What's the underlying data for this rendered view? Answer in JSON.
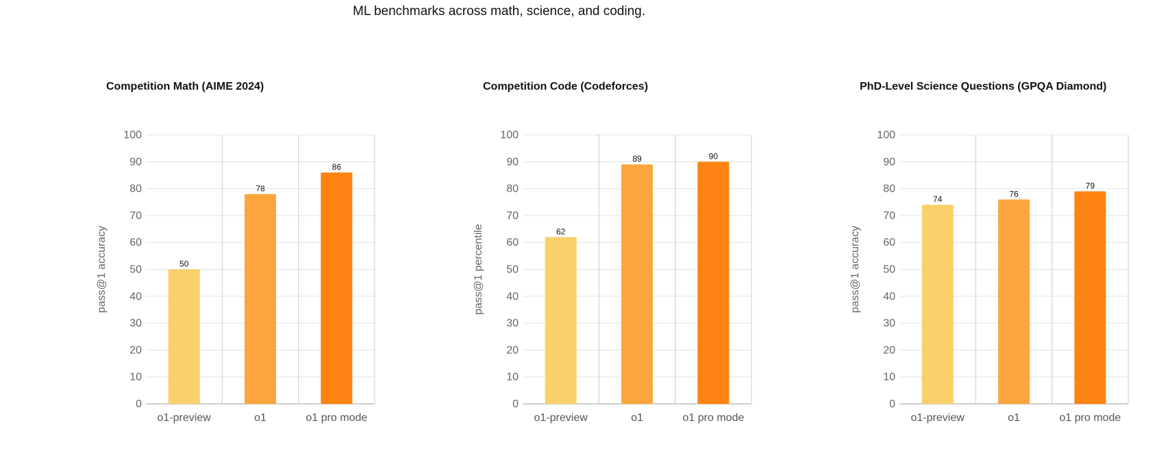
{
  "header": {
    "text": "ML benchmarks across math, science, and coding."
  },
  "colors": {
    "o1-preview": "#F9D06A",
    "o1": "#FBA63C",
    "o1 pro mode": "#FD8312",
    "grid": "#E2E2E2",
    "axis": "#BDBDBD"
  },
  "chart_data": [
    {
      "type": "bar",
      "title": "Competition Math (AIME 2024)",
      "ylabel": "pass@1 accuracy",
      "xlabel": "",
      "categories": [
        "o1-preview",
        "o1",
        "o1 pro mode"
      ],
      "values": [
        50,
        78,
        86
      ],
      "ylim": [
        0,
        100
      ],
      "yticks": [
        0,
        10,
        20,
        30,
        40,
        50,
        60,
        70,
        80,
        90,
        100
      ],
      "grid": true
    },
    {
      "type": "bar",
      "title": "Competition Code (Codeforces)",
      "ylabel": "pass@1 percentile",
      "xlabel": "",
      "categories": [
        "o1-preview",
        "o1",
        "o1 pro mode"
      ],
      "values": [
        62,
        89,
        90
      ],
      "ylim": [
        0,
        100
      ],
      "yticks": [
        0,
        10,
        20,
        30,
        40,
        50,
        60,
        70,
        80,
        90,
        100
      ],
      "grid": true
    },
    {
      "type": "bar",
      "title": "PhD-Level Science Questions (GPQA Diamond)",
      "ylabel": "pass@1 accuracy",
      "xlabel": "",
      "categories": [
        "o1-preview",
        "o1",
        "o1 pro mode"
      ],
      "values": [
        74,
        76,
        79
      ],
      "ylim": [
        0,
        100
      ],
      "yticks": [
        0,
        10,
        20,
        30,
        40,
        50,
        60,
        70,
        80,
        90,
        100
      ],
      "grid": true
    }
  ]
}
